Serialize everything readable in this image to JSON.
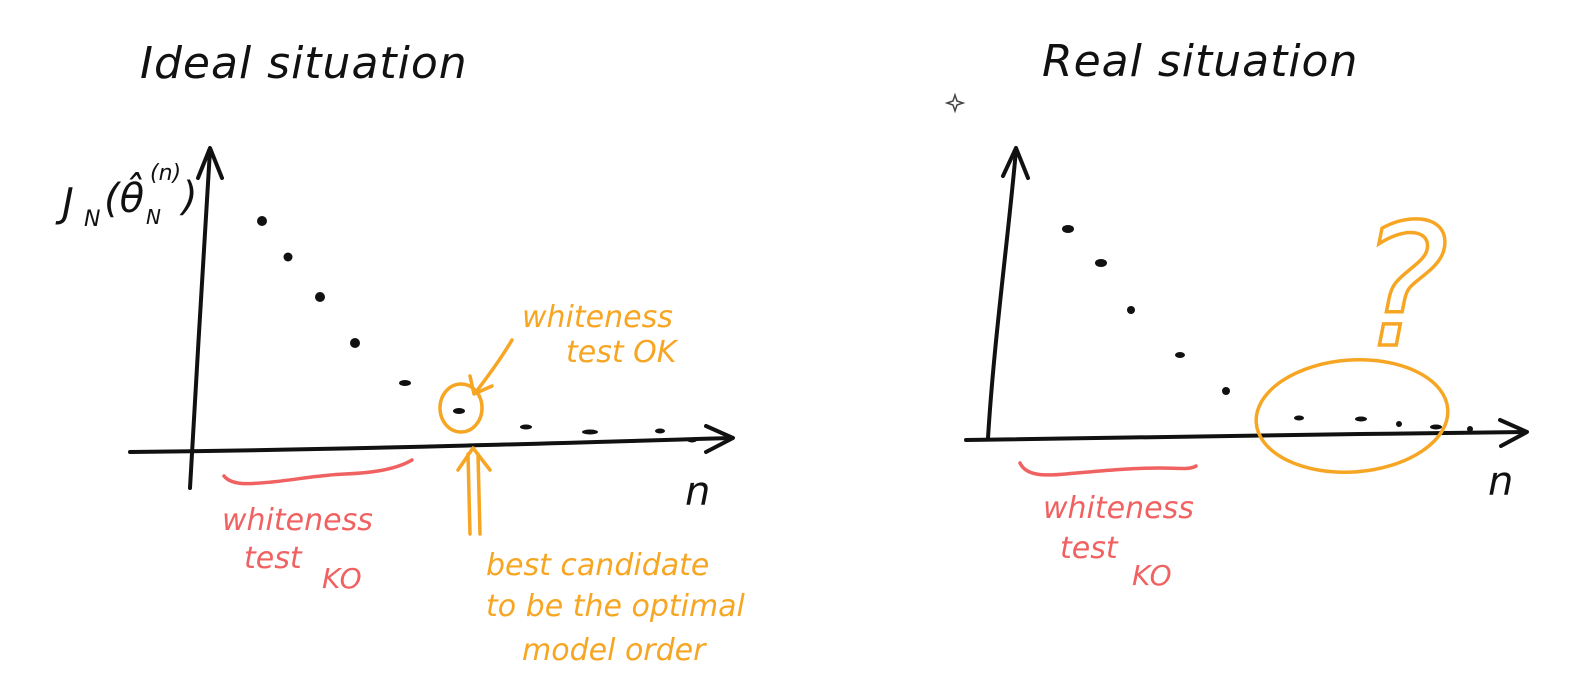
{
  "colors": {
    "ink": "#111111",
    "red": "#f06262",
    "orange": "#f6a623"
  },
  "ideal": {
    "title": "Ideal situation",
    "y_label_main": "J",
    "y_label_sub": "N",
    "y_label_theta": "(θ̂",
    "y_label_theta_sub": "N",
    "y_label_theta_sup": "(n)",
    "y_label_close": ")",
    "x_label": "n",
    "red_note_line1": "whiteness",
    "red_note_line2": "test",
    "red_note_line3": "KO",
    "ok_note_line1": "whiteness",
    "ok_note_line2": "test OK",
    "best_note_line1": "best candidate",
    "best_note_line2": "to be the optimal",
    "best_note_line3": "model order"
  },
  "real": {
    "title": "Real situation",
    "x_label": "n",
    "red_note_line1": "whiteness",
    "red_note_line2": "test",
    "red_note_line3": "KO",
    "question": "?"
  }
}
